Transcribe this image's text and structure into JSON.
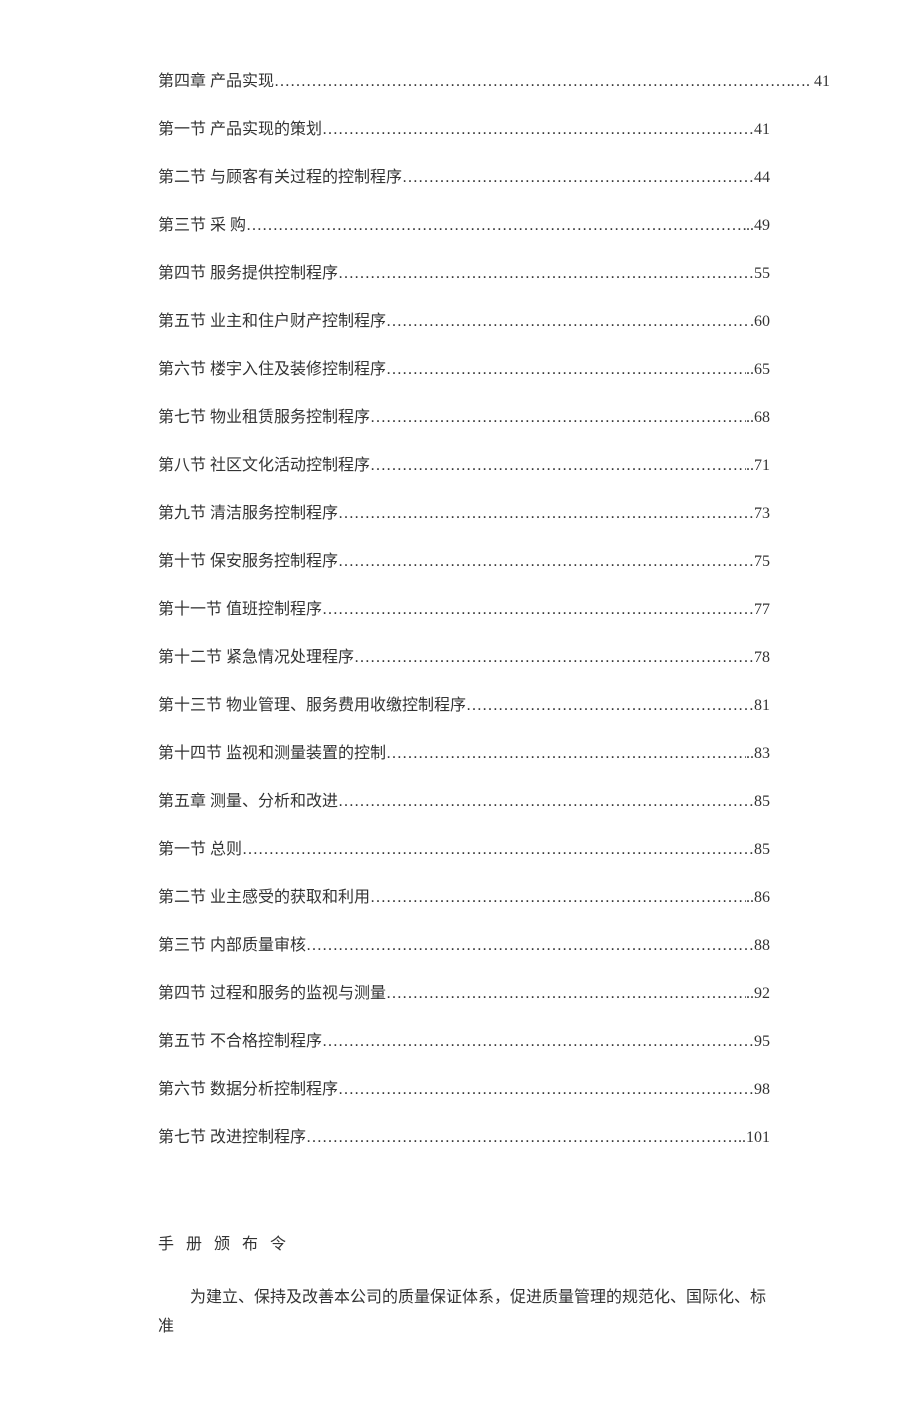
{
  "toc": [
    {
      "label": "第四章  产品实现",
      "page": " …. 41",
      "wide": true
    },
    {
      "label": "第一节  产品实现的策划",
      "page": "41"
    },
    {
      "label": "第二节  与顾客有关过程的控制程序",
      "page": "44"
    },
    {
      "label": "第三节  采  购",
      "page": "..49"
    },
    {
      "label": "第四节  服务提供控制程序",
      "page": "55"
    },
    {
      "label": "第五节  业主和住户财产控制程序  ",
      "page": ".60"
    },
    {
      "label": "第六节  楼宇入住及装修控制程序",
      "page": "..65"
    },
    {
      "label": "第七节  物业租赁服务控制程序",
      "page": "..68"
    },
    {
      "label": "第八节  社区文化活动控制程序",
      "page": "..71"
    },
    {
      "label": "第九节  清洁服务控制程序",
      "page": "73"
    },
    {
      "label": "第十节  保安服务控制程序",
      "page": "75"
    },
    {
      "label": "第十一节  值班控制程序",
      "page": "77"
    },
    {
      "label": "第十二节  紧急情况处理程序",
      "page": "78"
    },
    {
      "label": "第十三节  物业管理、服务费用收缴控制程序",
      "page": "81"
    },
    {
      "label": "第十四节  监视和测量装置的控制",
      "page": "..83"
    },
    {
      "label": "第五章  测量、分析和改进",
      "page": "85"
    },
    {
      "label": "第一节  总则",
      "page": "85"
    },
    {
      "label": "第二节  业主感受的获取和利用",
      "page": "..86"
    },
    {
      "label": "第三节  内部质量审核",
      "page": "88"
    },
    {
      "label": "第四节  过程和服务的监视与测量",
      "page": "..92"
    },
    {
      "label": "第五节  不合格控制程序",
      "page": "95"
    },
    {
      "label": "第六节  数据分析控制程序",
      "page": "98"
    },
    {
      "label": "第七节  改进控制程序",
      "page": "..101"
    }
  ],
  "heading": "手 册 颁 布 令",
  "body": "为建立、保持及改善本公司的质量保证体系，促进质量管理的规范化、国际化、标准"
}
